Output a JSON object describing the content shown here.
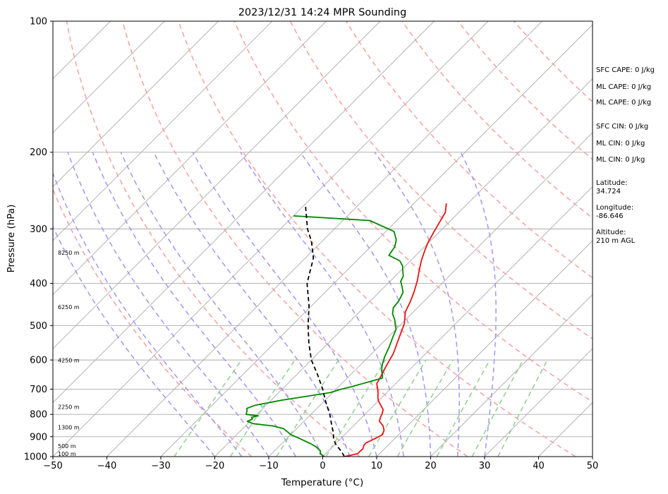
{
  "chart_data": {
    "type": "line",
    "title": "2023/12/31 14:24 MPR Sounding",
    "xlabel": "Temperature (°C)",
    "ylabel": "Pressure (hPa)",
    "xlim": [
      -50,
      50
    ],
    "ylim": [
      1000,
      100
    ],
    "y_scale": "log",
    "x_ticks": [
      "−50",
      "−40",
      "−30",
      "−20",
      "−10",
      "0",
      "10",
      "20",
      "30",
      "40",
      "50"
    ],
    "y_ticks": [
      {
        "p": 1000,
        "label": "1000"
      },
      {
        "p": 900,
        "label": "900"
      },
      {
        "p": 800,
        "label": "800"
      },
      {
        "p": 700,
        "label": "700"
      },
      {
        "p": 600,
        "label": "600"
      },
      {
        "p": 500,
        "label": "500"
      },
      {
        "p": 400,
        "label": "400"
      },
      {
        "p": 300,
        "label": "300"
      },
      {
        "p": 200,
        "label": "200"
      },
      {
        "p": 100,
        "label": "100"
      }
    ],
    "height_labels": [
      {
        "p": 1000,
        "label": "100 m"
      },
      {
        "p": 960,
        "label": "500 m"
      },
      {
        "p": 870,
        "label": "1300 m"
      },
      {
        "p": 780,
        "label": "2250 m"
      },
      {
        "p": 610,
        "label": "4250 m"
      },
      {
        "p": 460,
        "label": "6250 m"
      },
      {
        "p": 345,
        "label": "8250 m"
      }
    ],
    "series": [
      {
        "color": "#ee1111",
        "points": [
          [
            4.0,
            1000
          ],
          [
            5.9,
            985
          ],
          [
            6.0,
            960
          ],
          [
            5.5,
            940
          ],
          [
            5.5,
            930
          ],
          [
            6.5,
            905
          ],
          [
            7.0,
            890
          ],
          [
            6.5,
            870
          ],
          [
            5.5,
            850
          ],
          [
            4.0,
            830
          ],
          [
            3.5,
            815
          ],
          [
            3.0,
            795
          ],
          [
            2.5,
            780
          ],
          [
            0.0,
            745
          ],
          [
            -0.8,
            730
          ],
          [
            -1.5,
            715
          ],
          [
            -2.3,
            700
          ],
          [
            -3.5,
            680
          ],
          [
            -4.0,
            658
          ],
          [
            -5.0,
            620
          ],
          [
            -6.0,
            580
          ],
          [
            -8.0,
            530
          ],
          [
            -9.5,
            495
          ],
          [
            -11.5,
            465
          ],
          [
            -12.5,
            440
          ],
          [
            -13.5,
            420
          ],
          [
            -15.0,
            395
          ],
          [
            -16.5,
            375
          ],
          [
            -18.0,
            355
          ],
          [
            -19.0,
            340
          ],
          [
            -20.0,
            325
          ],
          [
            -21.0,
            305
          ],
          [
            -22.0,
            285
          ],
          [
            -22.5,
            275
          ],
          [
            -24.0,
            262
          ]
        ]
      },
      {
        "color": "#008800",
        "points": [
          [
            0.3,
            1000
          ],
          [
            -1.0,
            985
          ],
          [
            -1.5,
            970
          ],
          [
            -3.0,
            950
          ],
          [
            -4.5,
            935
          ],
          [
            -7.5,
            910
          ],
          [
            -10.0,
            890
          ],
          [
            -11.5,
            873
          ],
          [
            -12.5,
            862
          ],
          [
            -15.0,
            850
          ],
          [
            -19.0,
            840
          ],
          [
            -20.5,
            830
          ],
          [
            -20.0,
            820
          ],
          [
            -20.5,
            812
          ],
          [
            -19.5,
            806
          ],
          [
            -22.0,
            800
          ],
          [
            -22.5,
            785
          ],
          [
            -23.0,
            775
          ],
          [
            -22.0,
            762
          ],
          [
            -20.0,
            752
          ],
          [
            -18.0,
            742
          ],
          [
            -10.5,
            713
          ],
          [
            -9.0,
            700
          ],
          [
            -7.5,
            690
          ],
          [
            -3.5,
            660
          ],
          [
            -4.0,
            650
          ],
          [
            -5.0,
            635
          ],
          [
            -6.0,
            615
          ],
          [
            -7.0,
            590
          ],
          [
            -8.0,
            560
          ],
          [
            -9.0,
            535
          ],
          [
            -10.0,
            510
          ],
          [
            -12.0,
            485
          ],
          [
            -13.5,
            470
          ],
          [
            -14.5,
            455
          ],
          [
            -14.7,
            440
          ],
          [
            -15.5,
            420
          ],
          [
            -17.0,
            405
          ],
          [
            -18.0,
            396
          ],
          [
            -18.5,
            385
          ],
          [
            -19.5,
            375
          ],
          [
            -20.5,
            365
          ],
          [
            -22.0,
            355
          ],
          [
            -25.0,
            345
          ],
          [
            -25.5,
            330
          ],
          [
            -26.5,
            318
          ],
          [
            -28.5,
            304
          ],
          [
            -35.0,
            287
          ],
          [
            -50.0,
            280
          ]
        ]
      },
      {
        "color": "#000000",
        "dash": "6,4",
        "points": [
          [
            4.0,
            1000
          ],
          [
            3.2,
            985
          ],
          [
            2.0,
            965
          ],
          [
            1.0,
            950
          ],
          [
            0.0,
            935
          ],
          [
            -0.5,
            925
          ],
          [
            -1.5,
            905
          ],
          [
            -2.5,
            880
          ],
          [
            -4.0,
            850
          ],
          [
            -6.5,
            800
          ],
          [
            -9.5,
            750
          ],
          [
            -12.5,
            700
          ],
          [
            -16.0,
            650
          ],
          [
            -20.0,
            600
          ],
          [
            -23.5,
            550
          ],
          [
            -27.0,
            500
          ],
          [
            -30.5,
            450
          ],
          [
            -35.0,
            400
          ],
          [
            -38.5,
            350
          ],
          [
            -42.0,
            320
          ],
          [
            -45.0,
            300
          ],
          [
            -50.0,
            263
          ]
        ]
      }
    ],
    "dry_adiabat_thetas": [
      260,
      280,
      300,
      320,
      340,
      360,
      380,
      400,
      420,
      440
    ],
    "moist_adiabat_bases": [
      -20,
      -15,
      -10,
      -5,
      0,
      5,
      10,
      15,
      20,
      25,
      30
    ],
    "mixing_ratios": [
      0.4,
      1,
      2,
      4,
      7,
      10,
      16,
      24,
      32
    ],
    "isotherms": [
      -120,
      -110,
      -100,
      -90,
      -80,
      -70,
      -60,
      -50,
      -40,
      -30,
      -20,
      -10,
      0,
      10,
      20,
      30,
      40,
      50
    ],
    "side_text": [
      "SFC CAPE: 0 J/kg",
      "ML CAPE: 0 J/kg",
      "ML CAPE: 0 J/kg",
      "SFC CIN: 0 J/kg",
      "ML CIN: 0 J/kg",
      "ML CIN: 0 J/kg",
      "Latitude:",
      "34.724",
      "Longitude:",
      "-86.646",
      "Altitude:",
      "210 m AGL"
    ]
  },
  "colors": {
    "temperature": "#ee1111",
    "dewpoint": "#008800",
    "parcel": "#000000",
    "isotherm": "#aaaaaa",
    "dry_adiabat": "#f5a0a0",
    "moist_adiabat": "#9f97f3",
    "mixing_ratio": "#8fd08f"
  }
}
